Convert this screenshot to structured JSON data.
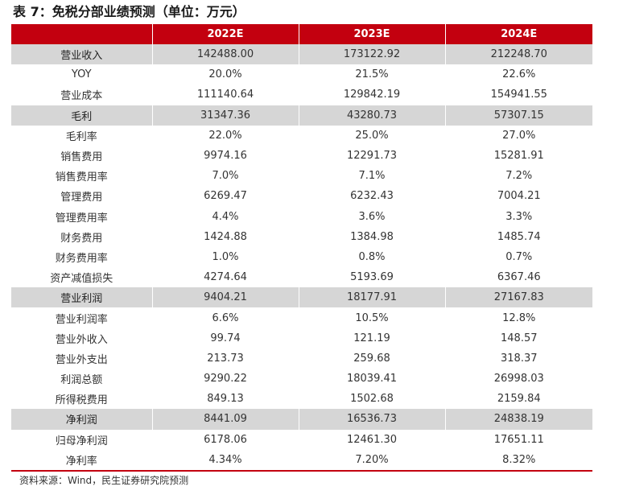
{
  "title": "表 7：免税分部业绩预测（单位：万元）",
  "header": {
    "label": "",
    "years": [
      "2022E",
      "2023E",
      "2024E"
    ]
  },
  "rows": [
    {
      "label": "营业收入",
      "values": [
        "142488.00",
        "173122.92",
        "212248.70"
      ],
      "highlight": true
    },
    {
      "label": "YOY",
      "values": [
        "20.0%",
        "21.5%",
        "22.6%"
      ],
      "highlight": false
    },
    {
      "label": "营业成本",
      "values": [
        "111140.64",
        "129842.19",
        "154941.55"
      ],
      "highlight": false
    },
    {
      "label": "毛利",
      "values": [
        "31347.36",
        "43280.73",
        "57307.15"
      ],
      "highlight": true
    },
    {
      "label": "毛利率",
      "values": [
        "22.0%",
        "25.0%",
        "27.0%"
      ],
      "highlight": false
    },
    {
      "label": "销售费用",
      "values": [
        "9974.16",
        "12291.73",
        "15281.91"
      ],
      "highlight": false
    },
    {
      "label": "销售费用率",
      "values": [
        "7.0%",
        "7.1%",
        "7.2%"
      ],
      "highlight": false
    },
    {
      "label": "管理费用",
      "values": [
        "6269.47",
        "6232.43",
        "7004.21"
      ],
      "highlight": false
    },
    {
      "label": "管理费用率",
      "values": [
        "4.4%",
        "3.6%",
        "3.3%"
      ],
      "highlight": false
    },
    {
      "label": "财务费用",
      "values": [
        "1424.88",
        "1384.98",
        "1485.74"
      ],
      "highlight": false
    },
    {
      "label": "财务费用率",
      "values": [
        "1.0%",
        "0.8%",
        "0.7%"
      ],
      "highlight": false
    },
    {
      "label": "资产减值损失",
      "values": [
        "4274.64",
        "5193.69",
        "6367.46"
      ],
      "highlight": false
    },
    {
      "label": "营业利润",
      "values": [
        "9404.21",
        "18177.91",
        "27167.83"
      ],
      "highlight": true
    },
    {
      "label": "营业利润率",
      "values": [
        "6.6%",
        "10.5%",
        "12.8%"
      ],
      "highlight": false
    },
    {
      "label": "营业外收入",
      "values": [
        "99.74",
        "121.19",
        "148.57"
      ],
      "highlight": false
    },
    {
      "label": "营业外支出",
      "values": [
        "213.73",
        "259.68",
        "318.37"
      ],
      "highlight": false
    },
    {
      "label": "利润总额",
      "values": [
        "9290.22",
        "18039.41",
        "26998.03"
      ],
      "highlight": false
    },
    {
      "label": "所得税费用",
      "values": [
        "849.13",
        "1502.68",
        "2159.84"
      ],
      "highlight": false
    },
    {
      "label": "净利润",
      "values": [
        "8441.09",
        "16536.73",
        "24838.19"
      ],
      "highlight": true
    },
    {
      "label": "归母净利润",
      "values": [
        "6178.06",
        "12461.30",
        "17651.11"
      ],
      "highlight": false
    },
    {
      "label": "净利率",
      "values": [
        "4.34%",
        "7.20%",
        "8.32%"
      ],
      "highlight": false
    }
  ],
  "source": "资料来源：Wind，民生证券研究院预测",
  "colors": {
    "header_bg": "#c3000f",
    "highlight_bg": "#d6d6d6"
  }
}
